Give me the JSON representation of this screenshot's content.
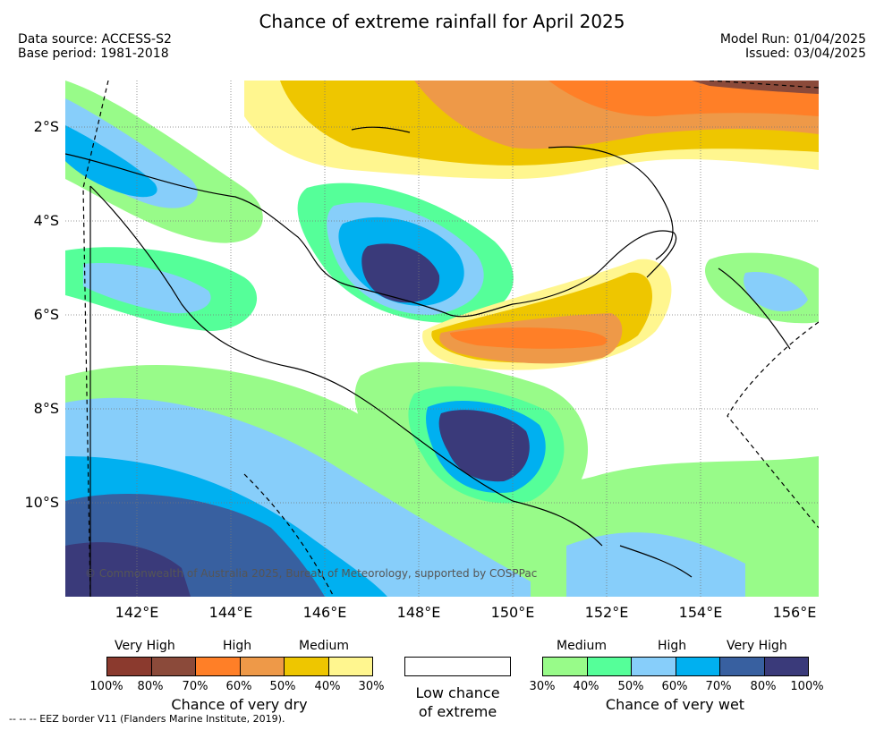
{
  "title": "Chance of extreme rainfall for April 2025",
  "header_left": {
    "data_source": "Data source: ACCESS-S2",
    "base_period": "Base period: 1981-2018"
  },
  "header_right": {
    "model_run": "Model Run: 01/04/2025",
    "issued": "Issued: 03/04/2025"
  },
  "map": {
    "region": "Papua New Guinea",
    "lat_labels": [
      "2°S",
      "4°S",
      "6°S",
      "8°S",
      "10°S"
    ],
    "lon_labels": [
      "142°E",
      "144°E",
      "146°E",
      "148°E",
      "150°E",
      "152°E",
      "154°E",
      "156°E"
    ],
    "copyright": "© Commonwealth of Australia 2025, Bureau of Meteorology, supported by COSPPac"
  },
  "legend": {
    "dry": {
      "categories": [
        "Very High",
        "High",
        "Medium"
      ],
      "colors": [
        "#8b3a2e",
        "#8b4a3a",
        "#ff7f27",
        "#ee9948",
        "#eec600",
        "#fff68f"
      ],
      "percent_labels": [
        "100%",
        "80%",
        "70%",
        "60%",
        "50%",
        "40%",
        "30%"
      ],
      "caption": "Chance of very dry"
    },
    "low": {
      "caption_line1": "Low chance",
      "caption_line2": "of extreme"
    },
    "wet": {
      "categories": [
        "Medium",
        "High",
        "Very High"
      ],
      "colors": [
        "#98fb89",
        "#55ff99",
        "#87cefa",
        "#00b0f0",
        "#3860a0",
        "#3a3a7a"
      ],
      "percent_labels": [
        "30%",
        "40%",
        "50%",
        "60%",
        "70%",
        "80%",
        "100%"
      ],
      "caption": "Chance of very wet"
    }
  },
  "footnote": "--  --  -- EEZ border V11 (Flanders Marine Institute, 2019)."
}
